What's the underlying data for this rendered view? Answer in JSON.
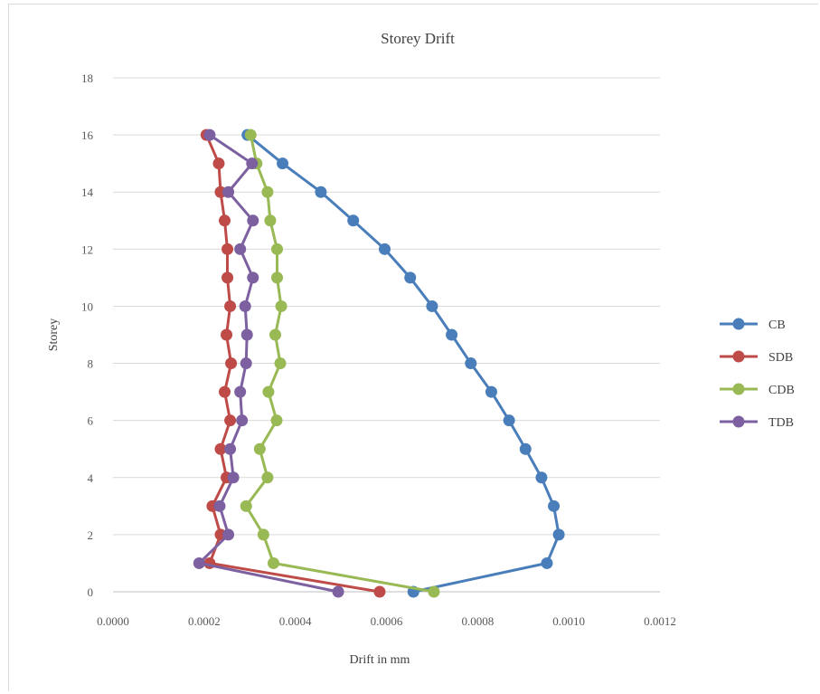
{
  "chart_data": {
    "type": "line",
    "title": "Storey Drift",
    "xlabel": "Drift in mm",
    "ylabel": "Storey",
    "xlim": [
      0,
      0.0012
    ],
    "ylim": [
      0,
      18
    ],
    "x_ticks": [
      "0.0000",
      "0.0002",
      "0.0004",
      "0.0006",
      "0.0008",
      "0.0010",
      "0.0012"
    ],
    "y_ticks": [
      "0",
      "2",
      "4",
      "6",
      "8",
      "10",
      "12",
      "14",
      "16",
      "18"
    ],
    "grid": "horizontal",
    "legend_position": "right",
    "series": [
      {
        "name": "CB",
        "color": "#4a7ebb",
        "points": [
          {
            "storey": 0,
            "drift": 0.000659
          },
          {
            "storey": 1,
            "drift": 0.000952
          },
          {
            "storey": 2,
            "drift": 0.000978
          },
          {
            "storey": 3,
            "drift": 0.000967
          },
          {
            "storey": 4,
            "drift": 0.00094
          },
          {
            "storey": 5,
            "drift": 0.000905
          },
          {
            "storey": 6,
            "drift": 0.000869
          },
          {
            "storey": 7,
            "drift": 0.00083
          },
          {
            "storey": 8,
            "drift": 0.000785
          },
          {
            "storey": 9,
            "drift": 0.000743
          },
          {
            "storey": 10,
            "drift": 0.0007
          },
          {
            "storey": 11,
            "drift": 0.000652
          },
          {
            "storey": 12,
            "drift": 0.000596
          },
          {
            "storey": 13,
            "drift": 0.000527
          },
          {
            "storey": 14,
            "drift": 0.000456
          },
          {
            "storey": 15,
            "drift": 0.000372
          },
          {
            "storey": 16,
            "drift": 0.000295
          }
        ]
      },
      {
        "name": "SDB",
        "color": "#be4b48",
        "points": [
          {
            "storey": 0,
            "drift": 0.000585
          },
          {
            "storey": 1,
            "drift": 0.000212
          },
          {
            "storey": 2,
            "drift": 0.000236
          },
          {
            "storey": 3,
            "drift": 0.000218
          },
          {
            "storey": 4,
            "drift": 0.000249
          },
          {
            "storey": 5,
            "drift": 0.000236
          },
          {
            "storey": 6,
            "drift": 0.000257
          },
          {
            "storey": 7,
            "drift": 0.000245
          },
          {
            "storey": 8,
            "drift": 0.000259
          },
          {
            "storey": 9,
            "drift": 0.000249
          },
          {
            "storey": 10,
            "drift": 0.000257
          },
          {
            "storey": 11,
            "drift": 0.000251
          },
          {
            "storey": 12,
            "drift": 0.000251
          },
          {
            "storey": 13,
            "drift": 0.000245
          },
          {
            "storey": 14,
            "drift": 0.000236
          },
          {
            "storey": 15,
            "drift": 0.000232
          },
          {
            "storey": 16,
            "drift": 0.000205
          }
        ]
      },
      {
        "name": "CDB",
        "color": "#98b954",
        "points": [
          {
            "storey": 0,
            "drift": 0.000704
          },
          {
            "storey": 1,
            "drift": 0.000352
          },
          {
            "storey": 2,
            "drift": 0.00033
          },
          {
            "storey": 3,
            "drift": 0.000292
          },
          {
            "storey": 4,
            "drift": 0.000339
          },
          {
            "storey": 5,
            "drift": 0.000322
          },
          {
            "storey": 6,
            "drift": 0.000359
          },
          {
            "storey": 7,
            "drift": 0.000341
          },
          {
            "storey": 8,
            "drift": 0.000367
          },
          {
            "storey": 9,
            "drift": 0.000356
          },
          {
            "storey": 10,
            "drift": 0.000369
          },
          {
            "storey": 11,
            "drift": 0.00036
          },
          {
            "storey": 12,
            "drift": 0.00036
          },
          {
            "storey": 13,
            "drift": 0.000345
          },
          {
            "storey": 14,
            "drift": 0.000339
          },
          {
            "storey": 15,
            "drift": 0.000315
          },
          {
            "storey": 16,
            "drift": 0.000302
          }
        ]
      },
      {
        "name": "TDB",
        "color": "#7d60a0",
        "points": [
          {
            "storey": 0,
            "drift": 0.000494
          },
          {
            "storey": 1,
            "drift": 0.000189
          },
          {
            "storey": 2,
            "drift": 0.000253
          },
          {
            "storey": 3,
            "drift": 0.000234
          },
          {
            "storey": 4,
            "drift": 0.000264
          },
          {
            "storey": 5,
            "drift": 0.000257
          },
          {
            "storey": 6,
            "drift": 0.000283
          },
          {
            "storey": 7,
            "drift": 0.000279
          },
          {
            "storey": 8,
            "drift": 0.000292
          },
          {
            "storey": 9,
            "drift": 0.000294
          },
          {
            "storey": 10,
            "drift": 0.00029
          },
          {
            "storey": 11,
            "drift": 0.000307
          },
          {
            "storey": 12,
            "drift": 0.000279
          },
          {
            "storey": 13,
            "drift": 0.000307
          },
          {
            "storey": 14,
            "drift": 0.000253
          },
          {
            "storey": 15,
            "drift": 0.000305
          },
          {
            "storey": 16,
            "drift": 0.000212
          }
        ]
      }
    ]
  }
}
